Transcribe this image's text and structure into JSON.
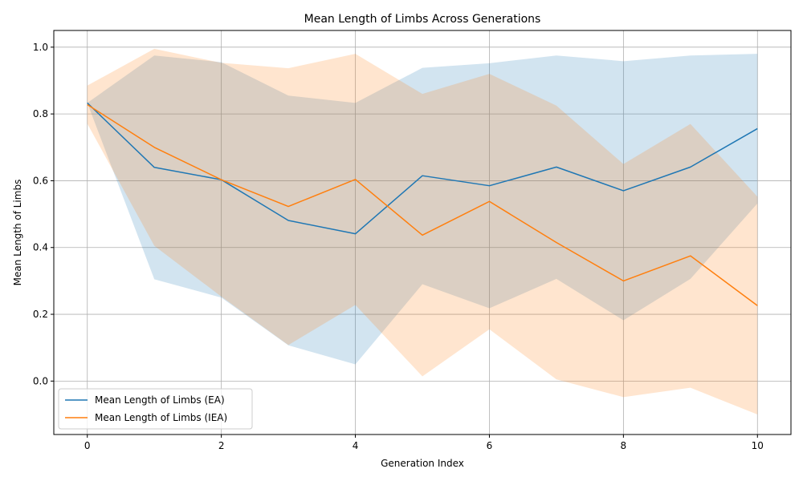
{
  "chart_data": {
    "type": "line",
    "title": "Mean Length of Limbs Across Generations",
    "xlabel": "Generation Index",
    "ylabel": "Mean Length of Limbs",
    "xlim": [
      -0.5,
      10.5
    ],
    "ylim": [
      -0.16,
      1.05
    ],
    "xticks": [
      0,
      2,
      4,
      6,
      8,
      10
    ],
    "yticks": [
      0.0,
      0.2,
      0.4,
      0.6,
      0.8,
      1.0
    ],
    "grid": true,
    "legend_position": "lower-left",
    "x": [
      0,
      1,
      2,
      3,
      4,
      5,
      6,
      7,
      8,
      9,
      10
    ],
    "series": [
      {
        "name": "Mean Length of Limbs (EA)",
        "color": "#1f77b4",
        "values": [
          0.833,
          0.64,
          0.603,
          0.481,
          0.441,
          0.615,
          0.585,
          0.641,
          0.57,
          0.641,
          0.756
        ],
        "upper": [
          0.833,
          0.975,
          0.955,
          0.855,
          0.833,
          0.938,
          0.952,
          0.975,
          0.958,
          0.975,
          0.98
        ],
        "lower": [
          0.833,
          0.305,
          0.25,
          0.107,
          0.05,
          0.29,
          0.218,
          0.306,
          0.182,
          0.306,
          0.532
        ]
      },
      {
        "name": "Mean Length of Limbs (IEA)",
        "color": "#ff7f0e",
        "values": [
          0.828,
          0.7,
          0.603,
          0.523,
          0.604,
          0.437,
          0.538,
          0.415,
          0.3,
          0.375,
          0.226
        ],
        "upper": [
          0.885,
          0.995,
          0.953,
          0.937,
          0.98,
          0.86,
          0.92,
          0.825,
          0.65,
          0.77,
          0.552
        ],
        "lower": [
          0.771,
          0.405,
          0.253,
          0.108,
          0.228,
          0.014,
          0.155,
          0.005,
          -0.048,
          -0.02,
          -0.1
        ]
      }
    ]
  }
}
